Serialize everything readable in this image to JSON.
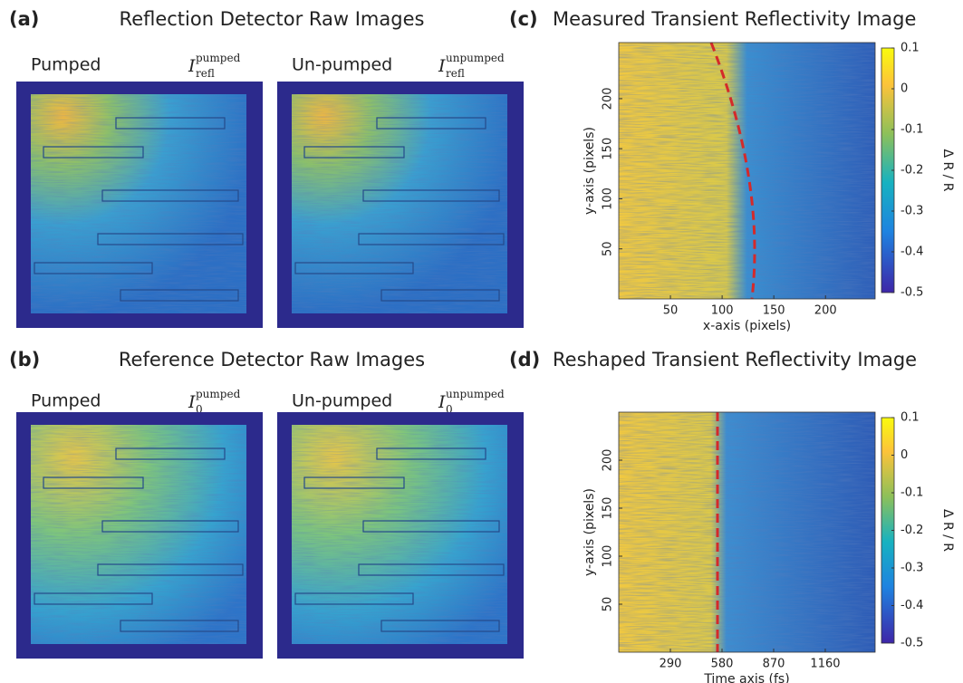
{
  "panels": [
    {
      "label": "(a)",
      "title": "Reflection Detector Raw Images",
      "images": [
        {
          "caption": "Pumped",
          "symbol": {
            "base": "I",
            "sub": "refl",
            "sup": "pumped"
          }
        },
        {
          "caption": "Un-pumped",
          "symbol": {
            "base": "I",
            "sub": "refl",
            "sup": "unpumped"
          }
        }
      ]
    },
    {
      "label": "(b)",
      "title": "Reference Detector Raw Images",
      "images": [
        {
          "caption": "Pumped",
          "symbol": {
            "base": "I",
            "sub": "0",
            "sup": "pumped"
          }
        },
        {
          "caption": "Un-pumped",
          "symbol": {
            "base": "I",
            "sub": "0",
            "sup": "unpumped"
          }
        }
      ]
    },
    {
      "label": "(c)",
      "title": "Measured Transient Reflectivity Image",
      "xlabel": "x-axis (pixels)",
      "ylabel": "y-axis (pixels)",
      "xlim": [
        0,
        248
      ],
      "xticks": [
        50,
        100,
        150,
        200
      ],
      "ylim": [
        0,
        256
      ],
      "yticks": [
        50,
        100,
        150,
        200
      ],
      "colorbar": {
        "label": "Δ R / R",
        "lim": [
          -0.5,
          0.1
        ],
        "ticks": [
          0.1,
          0,
          -0.1,
          -0.2,
          -0.3,
          -0.4,
          -0.5
        ]
      }
    },
    {
      "label": "(d)",
      "title": "Reshaped Transient Reflectivity Image",
      "xlabel": "Time axis (fs)",
      "ylabel": "y-axis (pixels)",
      "xlim": [
        0,
        1440
      ],
      "xticks": [
        290,
        580,
        870,
        1160
      ],
      "ylim": [
        0,
        250
      ],
      "yticks": [
        50,
        100,
        150,
        200
      ],
      "colorbar": {
        "label": "Δ R / R",
        "lim": [
          -0.5,
          0.1
        ],
        "ticks": [
          0.1,
          0,
          -0.1,
          -0.2,
          -0.3,
          -0.4,
          -0.5
        ]
      }
    }
  ]
}
